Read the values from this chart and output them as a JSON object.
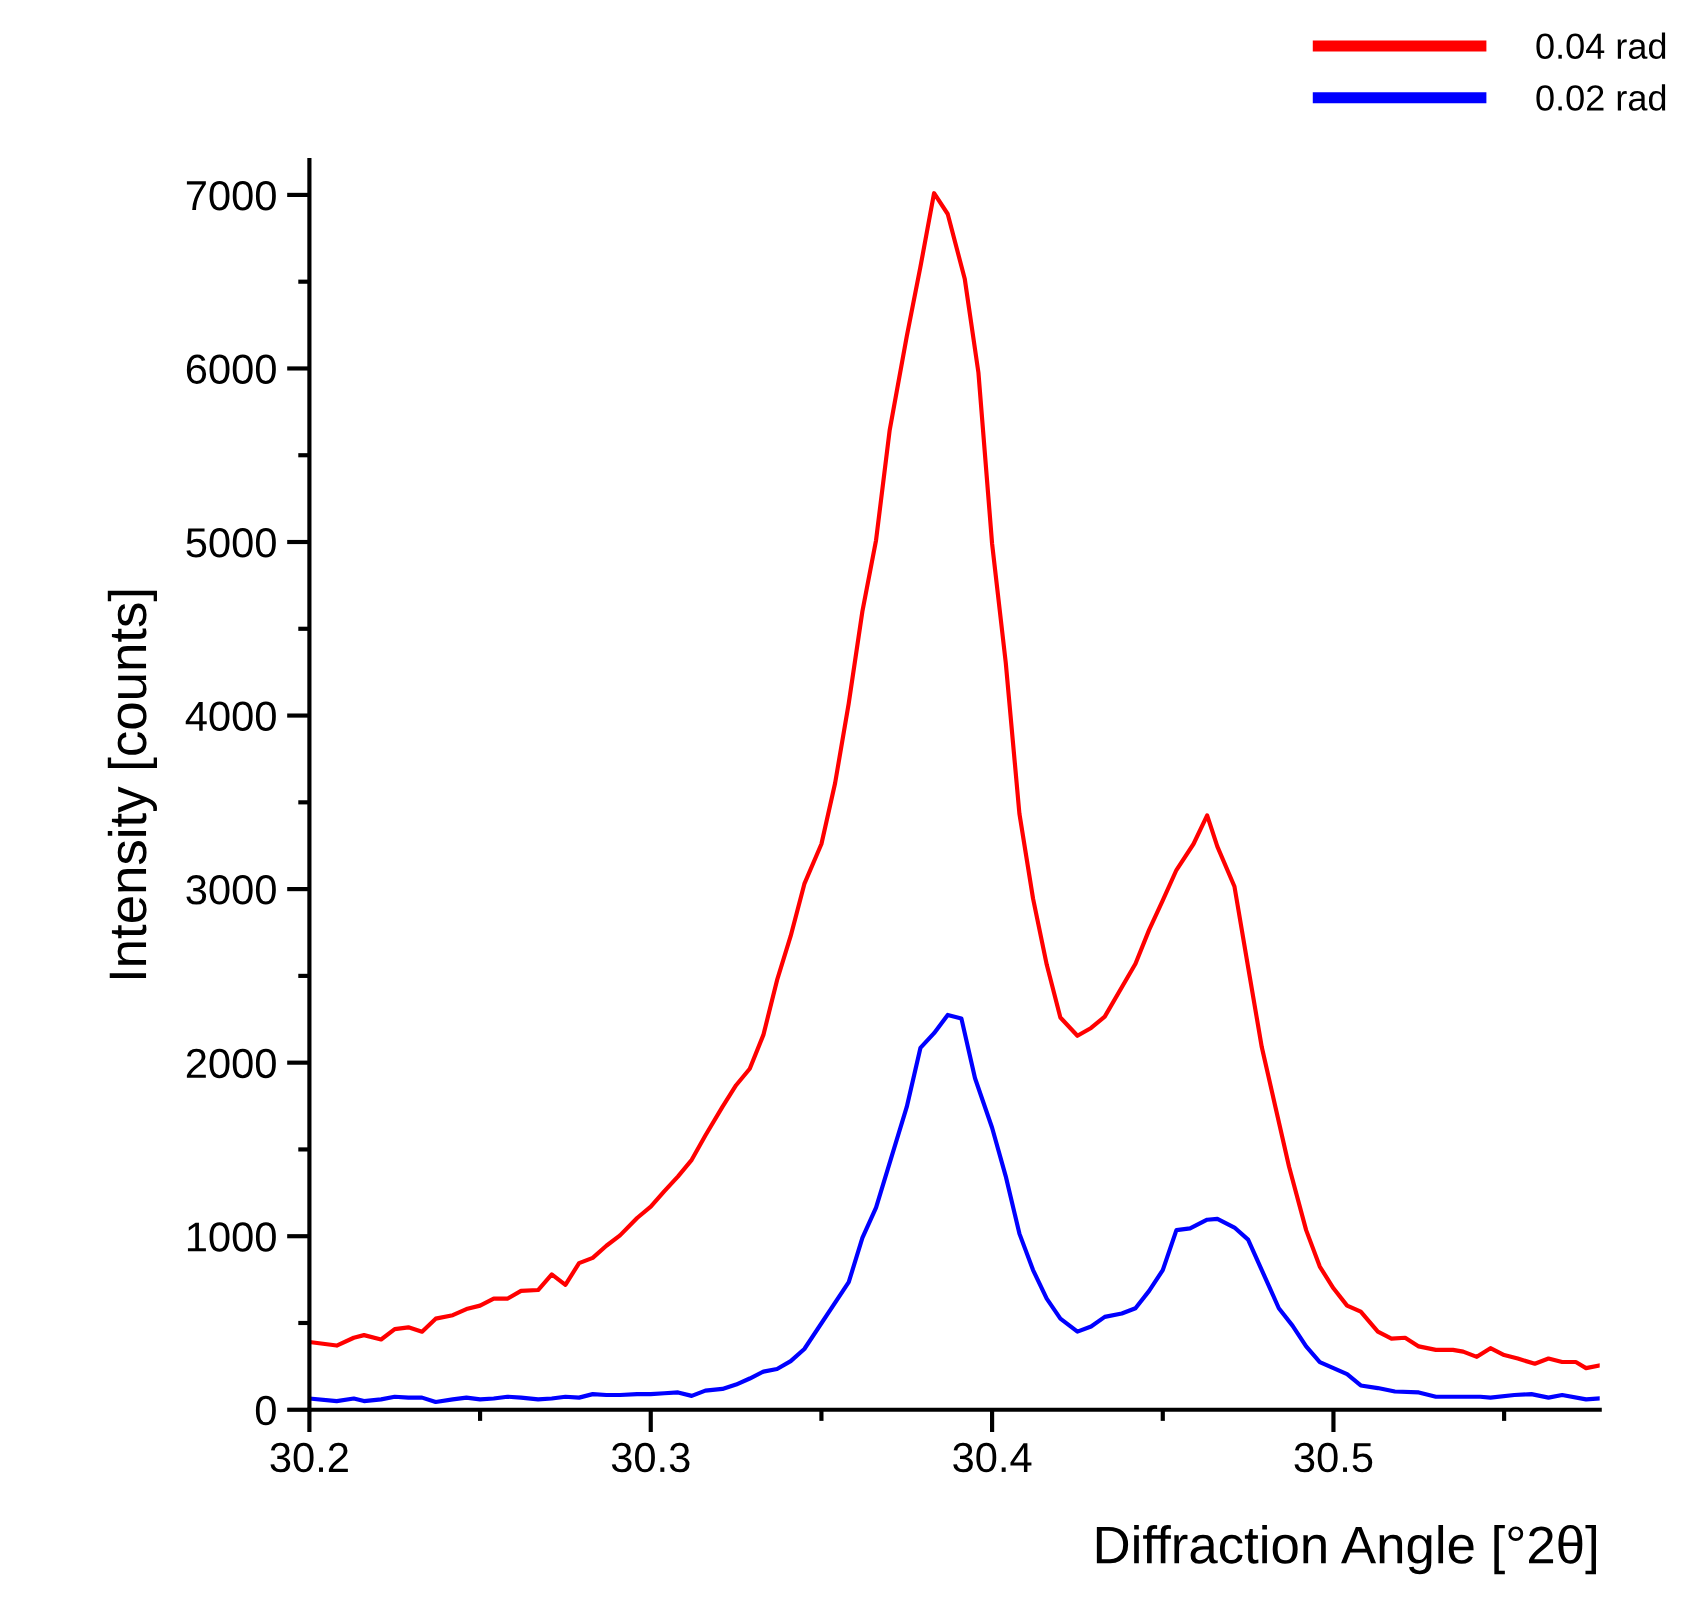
{
  "chart_data": {
    "type": "line",
    "xlabel": "Diffraction Angle [°2θ]",
    "ylabel": "Intensity [counts]",
    "legend": "top right",
    "grid": false,
    "marker": "none",
    "line_style": "solid",
    "xlim": [
      30.2,
      30.578
    ],
    "ylim": [
      0,
      7200
    ],
    "xticks": [
      30.2,
      {
        "value": 30.25,
        "label": null
      },
      30.3,
      {
        "value": 30.35,
        "label": null
      },
      30.4,
      {
        "value": 30.45,
        "label": null
      },
      30.5,
      {
        "value": 30.55,
        "label": null
      }
    ],
    "yticks": [
      0,
      {
        "value": 500,
        "label": null
      },
      1000,
      {
        "value": 1500,
        "label": null
      },
      2000,
      {
        "value": 2500,
        "label": null
      },
      3000,
      {
        "value": 3500,
        "label": null
      },
      4000,
      {
        "value": 4500,
        "label": null
      },
      5000,
      {
        "value": 5500,
        "label": null
      },
      6000,
      {
        "value": 6500,
        "label": null
      },
      7000
    ],
    "series": [
      {
        "name": "0.04 rad",
        "color": "#ff0000",
        "x": [
          30.2,
          30.208,
          30.213,
          30.216,
          30.221,
          30.225,
          30.229,
          30.233,
          30.237,
          30.242,
          30.246,
          30.25,
          30.254,
          30.258,
          30.262,
          30.267,
          30.271,
          30.275,
          30.279,
          30.283,
          30.287,
          30.291,
          30.296,
          30.3,
          30.304,
          30.308,
          30.312,
          30.316,
          30.321,
          30.325,
          30.329,
          30.333,
          30.337,
          30.341,
          30.345,
          30.35,
          30.354,
          30.358,
          30.362,
          30.366,
          30.37,
          30.375,
          30.379,
          30.383,
          30.387,
          30.392,
          30.396,
          30.4,
          30.404,
          30.408,
          30.412,
          30.416,
          30.42,
          30.425,
          30.429,
          30.433,
          30.442,
          30.446,
          30.45,
          30.454,
          30.459,
          30.463,
          30.466,
          30.471,
          30.475,
          30.479,
          30.483,
          30.487,
          30.492,
          30.496,
          30.5,
          30.504,
          30.508,
          30.513,
          30.517,
          30.521,
          30.525,
          30.53,
          30.535,
          30.538,
          30.542,
          30.546,
          30.55,
          30.554,
          30.559,
          30.563,
          30.567,
          30.571,
          30.574,
          30.578
        ],
        "values": [
          390,
          370,
          415,
          430,
          405,
          465,
          475,
          450,
          525,
          545,
          580,
          600,
          640,
          640,
          685,
          690,
          780,
          720,
          845,
          875,
          945,
          1005,
          1105,
          1170,
          1260,
          1345,
          1440,
          1580,
          1745,
          1870,
          1965,
          2160,
          2475,
          2730,
          3030,
          3260,
          3610,
          4070,
          4600,
          5010,
          5645,
          6185,
          6585,
          7010,
          6890,
          6515,
          5975,
          4990,
          4305,
          3435,
          2945,
          2565,
          2260,
          2155,
          2200,
          2265,
          2570,
          2765,
          2935,
          3110,
          3260,
          3425,
          3245,
          3015,
          2550,
          2090,
          1745,
          1400,
          1035,
          825,
          700,
          600,
          565,
          450,
          410,
          415,
          365,
          345,
          345,
          335,
          305,
          355,
          315,
          295,
          265,
          295,
          275,
          275,
          240,
          255
        ]
      },
      {
        "name": "0.02 rad",
        "color": "#0000ff",
        "x": [
          30.2,
          30.208,
          30.213,
          30.216,
          30.221,
          30.225,
          30.229,
          30.233,
          30.237,
          30.242,
          30.246,
          30.25,
          30.254,
          30.258,
          30.262,
          30.267,
          30.271,
          30.275,
          30.279,
          30.283,
          30.287,
          30.291,
          30.296,
          30.3,
          30.304,
          30.308,
          30.312,
          30.316,
          30.321,
          30.325,
          30.329,
          30.333,
          30.337,
          30.341,
          30.345,
          30.358,
          30.362,
          30.366,
          30.375,
          30.379,
          30.383,
          30.387,
          30.391,
          30.395,
          30.4,
          30.404,
          30.408,
          30.412,
          30.416,
          30.42,
          30.425,
          30.429,
          30.433,
          30.438,
          30.442,
          30.446,
          30.45,
          30.454,
          30.458,
          30.463,
          30.466,
          30.471,
          30.475,
          30.479,
          30.484,
          30.488,
          30.492,
          30.496,
          30.5,
          30.504,
          30.508,
          30.513,
          30.518,
          30.525,
          30.53,
          30.536,
          30.543,
          30.546,
          30.553,
          30.558,
          30.563,
          30.567,
          30.574,
          30.578
        ],
        "values": [
          65,
          50,
          65,
          50,
          60,
          75,
          70,
          70,
          45,
          60,
          70,
          60,
          65,
          75,
          70,
          60,
          65,
          75,
          70,
          90,
          85,
          85,
          90,
          90,
          95,
          100,
          80,
          110,
          120,
          145,
          180,
          220,
          235,
          280,
          350,
          735,
          990,
          1165,
          1745,
          2085,
          2170,
          2275,
          2255,
          1910,
          1625,
          1345,
          1015,
          805,
          640,
          525,
          450,
          480,
          535,
          555,
          585,
          685,
          805,
          1035,
          1045,
          1095,
          1100,
          1050,
          980,
          805,
          585,
          485,
          365,
          275,
          240,
          205,
          140,
          125,
          105,
          100,
          75,
          75,
          75,
          70,
          85,
          90,
          70,
          85,
          60,
          65
        ]
      }
    ]
  }
}
